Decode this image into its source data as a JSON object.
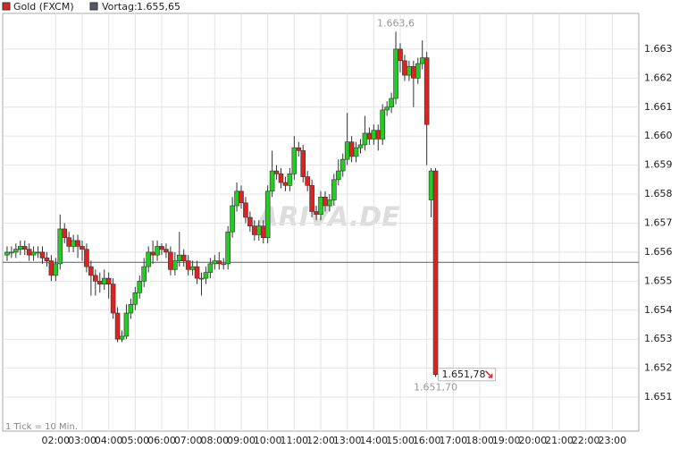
{
  "chart_data": {
    "type": "candlestick",
    "series": [
      {
        "name": "Gold (FXCM)",
        "color": "#dd2222",
        "color_up": "#22cc22",
        "color_down": "#dd2222",
        "x": [
          10,
          20,
          30,
          40,
          50,
          60,
          70,
          80,
          90,
          100,
          110,
          120,
          130,
          140,
          150,
          160,
          170,
          180,
          190,
          200,
          210,
          220,
          230,
          240,
          250,
          260,
          270,
          280,
          290,
          300,
          310,
          320,
          330,
          340,
          350,
          360,
          370,
          380,
          390,
          400,
          410,
          420,
          430,
          440,
          450,
          460,
          470,
          480,
          490,
          500,
          510,
          520,
          530,
          540,
          550,
          560,
          570,
          580,
          590,
          600,
          610,
          620,
          630,
          640,
          650,
          660,
          670,
          680,
          690,
          700,
          710,
          720,
          730,
          740,
          750,
          760,
          770,
          780,
          790,
          800,
          810,
          820,
          830,
          840,
          850,
          860,
          870,
          880,
          890,
          900,
          910,
          920,
          930,
          940,
          950,
          960,
          970,
          980
        ],
        "open": [
          1655.9,
          1656.0,
          1656.0,
          1656.1,
          1656.2,
          1656.1,
          1655.9,
          1656.0,
          1656.0,
          1655.8,
          1655.7,
          1655.2,
          1655.6,
          1656.8,
          1656.5,
          1656.2,
          1656.4,
          1656.2,
          1656.1,
          1655.5,
          1655.2,
          1655.0,
          1654.9,
          1655.1,
          1654.9,
          1653.9,
          1653.0,
          1653.1,
          1653.9,
          1654.2,
          1654.6,
          1655.0,
          1655.5,
          1656.0,
          1655.9,
          1656.2,
          1656.1,
          1656.0,
          1655.4,
          1655.7,
          1655.9,
          1655.7,
          1655.4,
          1655.5,
          1655.1,
          1655.1,
          1655.3,
          1655.6,
          1655.7,
          1655.6,
          1655.6,
          1656.7,
          1657.6,
          1658.1,
          1657.7,
          1657.2,
          1656.9,
          1656.6,
          1656.9,
          1656.5,
          1658.1,
          1658.8,
          1658.7,
          1658.4,
          1658.3,
          1658.7,
          1659.6,
          1659.5,
          1658.6,
          1658.3,
          1657.4,
          1657.3,
          1657.9,
          1657.6,
          1657.8,
          1658.5,
          1658.8,
          1659.2,
          1659.8,
          1659.3,
          1659.6,
          1659.7,
          1660.1,
          1659.9,
          1660.2,
          1659.9,
          1660.9,
          1661.0,
          1661.3,
          1663.0,
          1662.6,
          1662.1,
          1662.4,
          1662.0,
          1662.5,
          1662.7,
          1657.8,
          1658.8
        ],
        "high": [
          1656.2,
          1656.2,
          1656.3,
          1656.4,
          1656.4,
          1656.3,
          1656.2,
          1656.2,
          1656.2,
          1656.0,
          1655.9,
          1655.8,
          1657.3,
          1657.0,
          1656.7,
          1656.6,
          1656.6,
          1656.4,
          1656.3,
          1655.7,
          1655.4,
          1655.3,
          1655.4,
          1655.3,
          1655.1,
          1654.1,
          1653.3,
          1654.2,
          1654.4,
          1654.8,
          1655.2,
          1655.8,
          1656.2,
          1656.4,
          1656.4,
          1656.3,
          1656.3,
          1656.2,
          1656.0,
          1656.7,
          1656.1,
          1655.9,
          1655.7,
          1655.7,
          1655.3,
          1655.5,
          1655.8,
          1655.9,
          1656.0,
          1655.8,
          1656.9,
          1657.9,
          1658.4,
          1658.3,
          1657.9,
          1657.4,
          1657.1,
          1657.1,
          1657.1,
          1658.3,
          1659.5,
          1659.0,
          1658.9,
          1658.6,
          1658.9,
          1660.0,
          1659.8,
          1659.7,
          1658.8,
          1658.5,
          1657.6,
          1658.1,
          1658.1,
          1658.0,
          1658.7,
          1659.2,
          1659.4,
          1660.8,
          1660.0,
          1659.8,
          1659.9,
          1660.7,
          1660.3,
          1660.4,
          1660.4,
          1661.1,
          1661.2,
          1661.5,
          1663.6,
          1663.2,
          1662.8,
          1662.6,
          1662.6,
          1662.7,
          1663.3,
          1662.9,
          1658.9,
          1658.9
        ],
        "low": [
          1655.7,
          1655.8,
          1655.8,
          1655.9,
          1655.9,
          1655.7,
          1655.7,
          1655.8,
          1655.6,
          1655.5,
          1655.0,
          1655.0,
          1655.4,
          1656.3,
          1656.0,
          1656.0,
          1655.8,
          1655.7,
          1655.3,
          1654.5,
          1654.5,
          1654.6,
          1654.7,
          1654.4,
          1653.7,
          1652.9,
          1652.9,
          1653.0,
          1653.7,
          1654.0,
          1654.4,
          1654.8,
          1655.3,
          1655.6,
          1655.7,
          1655.9,
          1655.8,
          1655.2,
          1655.2,
          1655.5,
          1655.5,
          1655.2,
          1655.2,
          1654.9,
          1654.5,
          1654.9,
          1655.1,
          1655.4,
          1655.4,
          1655.4,
          1655.4,
          1656.5,
          1657.4,
          1657.5,
          1657.0,
          1656.7,
          1656.4,
          1656.4,
          1656.3,
          1656.3,
          1657.9,
          1658.5,
          1658.2,
          1658.1,
          1658.1,
          1658.5,
          1659.3,
          1658.4,
          1658.1,
          1657.2,
          1657.1,
          1657.1,
          1657.4,
          1657.4,
          1657.6,
          1658.3,
          1658.6,
          1659.0,
          1659.1,
          1659.1,
          1659.4,
          1659.5,
          1659.7,
          1659.7,
          1659.5,
          1659.7,
          1660.7,
          1660.8,
          1661.1,
          1662.2,
          1661.9,
          1661.9,
          1661.0,
          1661.8,
          1662.3,
          1659.0,
          1657.2,
          1651.7
        ],
        "close": [
          1656.0,
          1656.0,
          1656.1,
          1656.2,
          1656.1,
          1655.9,
          1656.0,
          1656.0,
          1655.8,
          1655.7,
          1655.2,
          1655.6,
          1656.8,
          1656.5,
          1656.2,
          1656.4,
          1656.2,
          1656.1,
          1655.5,
          1655.2,
          1655.0,
          1654.9,
          1655.1,
          1654.9,
          1653.9,
          1653.0,
          1653.1,
          1653.9,
          1654.2,
          1654.6,
          1655.0,
          1655.5,
          1656.0,
          1655.9,
          1656.2,
          1656.1,
          1656.0,
          1655.4,
          1655.7,
          1655.9,
          1655.7,
          1655.4,
          1655.5,
          1655.1,
          1655.1,
          1655.3,
          1655.6,
          1655.7,
          1655.6,
          1655.6,
          1656.7,
          1657.6,
          1658.1,
          1657.7,
          1657.2,
          1656.9,
          1656.6,
          1656.9,
          1656.5,
          1658.1,
          1658.8,
          1658.7,
          1658.4,
          1658.3,
          1658.7,
          1659.6,
          1659.5,
          1658.6,
          1658.3,
          1657.4,
          1657.3,
          1657.9,
          1657.6,
          1657.8,
          1658.5,
          1658.8,
          1659.2,
          1659.8,
          1659.3,
          1659.6,
          1659.7,
          1660.1,
          1659.9,
          1660.2,
          1659.9,
          1660.9,
          1661.0,
          1661.3,
          1663.0,
          1662.6,
          1662.1,
          1662.4,
          1662.0,
          1662.5,
          1662.7,
          1660.4,
          1658.8,
          1651.78
        ]
      }
    ],
    "xlim": [
      0,
      1440
    ],
    "xticks": [
      {
        "value": 120,
        "label": "02:00"
      },
      {
        "value": 180,
        "label": "03:00"
      },
      {
        "value": 240,
        "label": "04:00"
      },
      {
        "value": 300,
        "label": "05:00"
      },
      {
        "value": 360,
        "label": "06:00"
      },
      {
        "value": 420,
        "label": "07:00"
      },
      {
        "value": 480,
        "label": "08:00"
      },
      {
        "value": 540,
        "label": "09:00"
      },
      {
        "value": 600,
        "label": "10:00"
      },
      {
        "value": 660,
        "label": "11:00"
      },
      {
        "value": 720,
        "label": "12:00"
      },
      {
        "value": 780,
        "label": "13:00"
      },
      {
        "value": 840,
        "label": "14:00"
      },
      {
        "value": 900,
        "label": "15:00"
      },
      {
        "value": 960,
        "label": "16:00"
      },
      {
        "value": 1020,
        "label": "17:00"
      },
      {
        "value": 1080,
        "label": "18:00"
      },
      {
        "value": 1140,
        "label": "19:00"
      },
      {
        "value": 1200,
        "label": "20:00"
      },
      {
        "value": 1260,
        "label": "21:00"
      },
      {
        "value": 1320,
        "label": "22:00"
      },
      {
        "value": 1380,
        "label": "23:00"
      }
    ],
    "ylim": [
      1649.83,
      1664.23
    ],
    "yticks": [
      {
        "value": 1651,
        "label": "1.651"
      },
      {
        "value": 1652,
        "label": "1.652"
      },
      {
        "value": 1653,
        "label": "1.653"
      },
      {
        "value": 1654,
        "label": "1.654"
      },
      {
        "value": 1655,
        "label": "1.655"
      },
      {
        "value": 1656,
        "label": "1.656"
      },
      {
        "value": 1657,
        "label": "1.657"
      },
      {
        "value": 1658,
        "label": "1.658"
      },
      {
        "value": 1659,
        "label": "1.659"
      },
      {
        "value": 1660,
        "label": "1.660"
      },
      {
        "value": 1661,
        "label": "1.661"
      },
      {
        "value": 1662,
        "label": "1.662"
      },
      {
        "value": 1663,
        "label": "1.663"
      }
    ],
    "grid": true,
    "reference_line": {
      "name": "Vortag:",
      "value": 1655.65,
      "label": "1.655,65",
      "color": "#555a66"
    },
    "high_label": {
      "value": 1663.6,
      "label": "1.663,6"
    },
    "low_label": {
      "value": 1651.7,
      "label": "1.651,70"
    },
    "last_label": {
      "value": 1651.78,
      "label": "1.651,78"
    },
    "note": "1 Tick = 10 Min.",
    "watermark": "ARIVA.DE"
  }
}
